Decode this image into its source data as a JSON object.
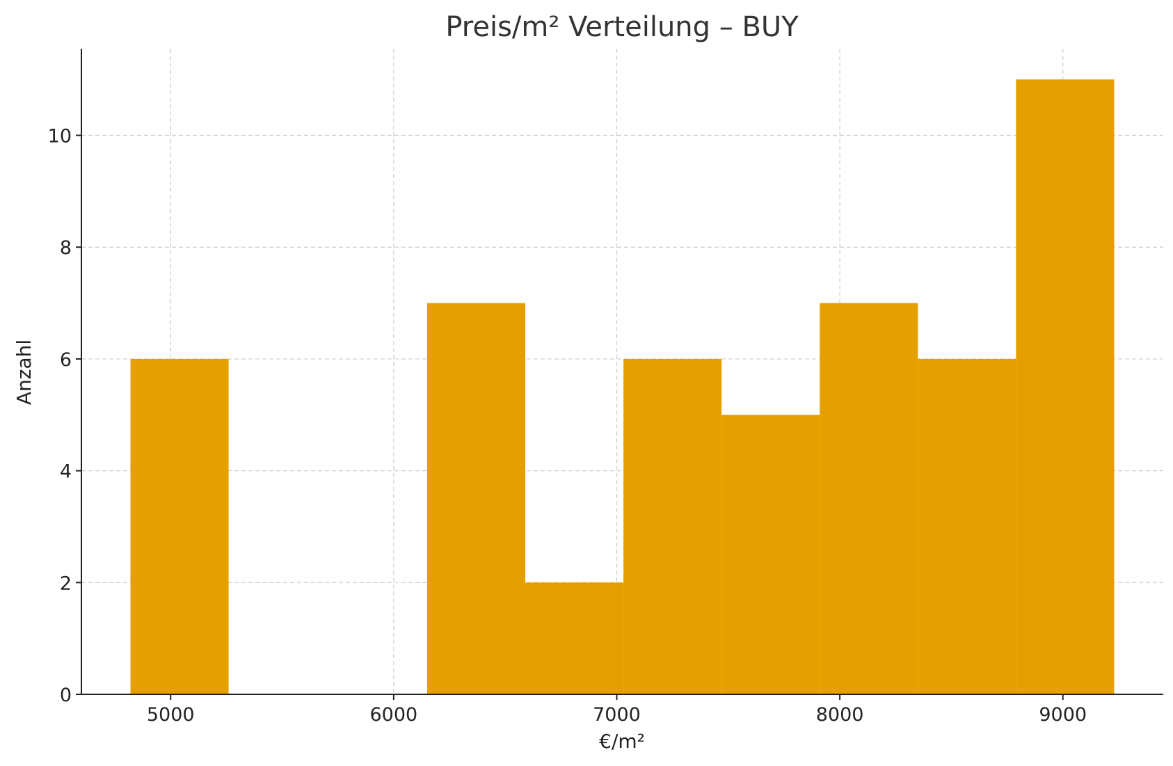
{
  "chart_data": {
    "type": "bar",
    "subtype": "histogram",
    "title": "Preis/m² Verteilung – BUY",
    "xlabel": "€/m²",
    "ylabel": "Anzahl",
    "xlim": [
      4600,
      9450
    ],
    "ylim": [
      0,
      11.55
    ],
    "xticks": [
      5000,
      6000,
      7000,
      8000,
      9000
    ],
    "yticks": [
      0,
      2,
      4,
      6,
      8,
      10
    ],
    "grid": true,
    "bar_color": "#e5a000",
    "bins": [
      {
        "start": 4820,
        "end": 5260,
        "count": 6
      },
      {
        "start": 5260,
        "end": 5710,
        "count": 0
      },
      {
        "start": 5710,
        "end": 6150,
        "count": 0
      },
      {
        "start": 6150,
        "end": 6590,
        "count": 7
      },
      {
        "start": 6590,
        "end": 7030,
        "count": 2
      },
      {
        "start": 7030,
        "end": 7470,
        "count": 6
      },
      {
        "start": 7470,
        "end": 7910,
        "count": 5
      },
      {
        "start": 7910,
        "end": 8350,
        "count": 7
      },
      {
        "start": 8350,
        "end": 8790,
        "count": 6
      },
      {
        "start": 8790,
        "end": 9230,
        "count": 11
      }
    ]
  }
}
